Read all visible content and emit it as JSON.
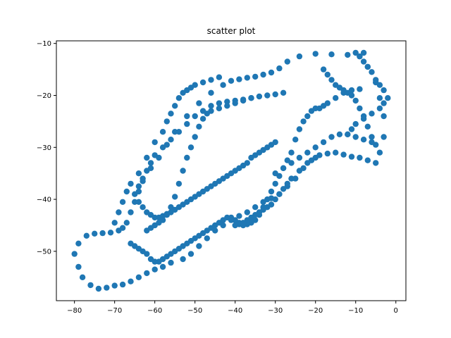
{
  "chart_data": {
    "type": "scatter",
    "title": "scatter plot",
    "xlabel": "",
    "ylabel": "",
    "xlim": [
      -84.5,
      2.5
    ],
    "ylim": [
      -59.5,
      -9.5
    ],
    "xticks": [
      -80,
      -70,
      -60,
      -50,
      -40,
      -30,
      -20,
      -10,
      0
    ],
    "yticks": [
      -10,
      -20,
      -30,
      -40,
      -50
    ],
    "xtick_labels": [
      "−80",
      "−70",
      "−60",
      "−50",
      "−40",
      "−30",
      "−20",
      "−10",
      "0"
    ],
    "ytick_labels": [
      "−10",
      "−20",
      "−30",
      "−40",
      "−50"
    ],
    "grid": false,
    "marker_color": "#1f77b4",
    "series": [
      {
        "x": [
          -8,
          -12,
          -16,
          -20,
          -24,
          -27,
          -29,
          -31,
          -33,
          -35,
          -37,
          -39,
          -41,
          -43,
          -46,
          -49,
          -52,
          -55,
          -57,
          -59,
          -61,
          -63,
          -64,
          -65,
          -66,
          -67,
          -68,
          -69,
          -71,
          -73,
          -75,
          -77,
          -79,
          -80,
          -79,
          -78,
          -76,
          -74,
          -72,
          -70,
          -68,
          -66,
          -64,
          -62,
          -60,
          -58,
          -56,
          -53,
          -51,
          -49,
          -47,
          -45,
          -43,
          -41,
          -39,
          -37,
          -35,
          -33,
          -31,
          -29,
          -27,
          -25,
          -23,
          -21,
          -19,
          -17,
          -15,
          -13,
          -11,
          -9,
          -7,
          -5,
          -4,
          -3,
          -3,
          -4,
          -5,
          -7,
          -9
        ],
        "y": [
          -11.8,
          -12.2,
          -12.1,
          -12.0,
          -12.5,
          -13.5,
          -14.8,
          -15.6,
          -16.0,
          -16.4,
          -16.6,
          -16.9,
          -17.2,
          -18.0,
          -19.5,
          -21.5,
          -24.0,
          -27.0,
          -29.5,
          -32.0,
          -34.0,
          -36.5,
          -38.5,
          -40.5,
          -42.5,
          -44.5,
          -45.5,
          -46.0,
          -46.4,
          -46.5,
          -46.6,
          -47.0,
          -48.5,
          -50.5,
          -53.0,
          -55.0,
          -56.5,
          -57.2,
          -57.0,
          -56.6,
          -56.4,
          -55.8,
          -55.0,
          -54.2,
          -53.5,
          -53.0,
          -52.2,
          -51.5,
          -50.5,
          -49.0,
          -47.5,
          -46.0,
          -45.0,
          -44.0,
          -43.2,
          -42.5,
          -41.5,
          -40.5,
          -39.8,
          -39.0,
          -37.5,
          -36.0,
          -34.0,
          -32.5,
          -31.5,
          -31.2,
          -31.0,
          -31.4,
          -31.8,
          -32.0,
          -32.5,
          -33.0,
          -31.0,
          -28.0,
          -24.0,
          -20.5,
          -17.5,
          -14.5,
          -12.5
        ]
      },
      {
        "x": [
          -9,
          -11,
          -13,
          -15,
          -17,
          -18,
          -19,
          -20,
          -21,
          -22,
          -23,
          -24,
          -25,
          -26,
          -27,
          -28,
          -29,
          -30,
          -31,
          -32,
          -33,
          -34,
          -35,
          -36,
          -37,
          -38,
          -39,
          -40,
          -41,
          -42,
          -43,
          -44,
          -45,
          -46,
          -47,
          -48,
          -49,
          -50,
          -51,
          -52,
          -53,
          -54,
          -55,
          -56,
          -57,
          -58,
          -59,
          -60,
          -61,
          -62,
          -63,
          -64,
          -65,
          -66
        ],
        "y": [
          -18.8,
          -19.0,
          -19.5,
          -20.5,
          -21.5,
          -22.0,
          -22.5,
          -22.5,
          -23.0,
          -24.0,
          -25.0,
          -26.5,
          -28.5,
          -31.0,
          -32.5,
          -34.0,
          -35.5,
          -37.0,
          -38.5,
          -40.0,
          -41.5,
          -43.0,
          -44.0,
          -44.5,
          -44.8,
          -45.0,
          -44.5,
          -44.0,
          -43.5,
          -43.5,
          -44.0,
          -44.5,
          -45.0,
          -45.5,
          -46.0,
          -46.5,
          -47.0,
          -47.5,
          -48.0,
          -48.5,
          -49.0,
          -49.5,
          -50.0,
          -50.5,
          -51.0,
          -51.5,
          -52.0,
          -52.0,
          -51.5,
          -50.5,
          -50.0,
          -49.5,
          -49.0,
          -48.5
        ]
      },
      {
        "x": [
          -28,
          -30,
          -32,
          -34,
          -36,
          -38,
          -40,
          -42,
          -44,
          -46,
          -48,
          -50,
          -52,
          -54,
          -56,
          -58,
          -60,
          -61,
          -62,
          -63,
          -64,
          -65,
          -64,
          -63,
          -62,
          -61,
          -60,
          -59,
          -58,
          -57,
          -56,
          -55,
          -54,
          -53,
          -52,
          -51,
          -50,
          -49,
          -48,
          -47,
          -46,
          -45,
          -44,
          -43,
          -42,
          -41,
          -40,
          -39,
          -38,
          -37,
          -36,
          -35,
          -34,
          -33,
          -32,
          -31,
          -30
        ],
        "y": [
          -19.5,
          -19.8,
          -20.0,
          -20.2,
          -20.5,
          -20.8,
          -21.0,
          -21.2,
          -21.5,
          -22.0,
          -23.0,
          -24.0,
          -25.5,
          -27.0,
          -28.5,
          -30.0,
          -31.5,
          -33.0,
          -34.5,
          -36.0,
          -37.5,
          -39.0,
          -40.5,
          -41.5,
          -42.5,
          -43.0,
          -43.5,
          -43.5,
          -43.2,
          -42.8,
          -42.5,
          -42.0,
          -41.5,
          -41.0,
          -40.5,
          -40.0,
          -39.5,
          -39.0,
          -38.5,
          -38.0,
          -37.5,
          -37.0,
          -36.5,
          -36.0,
          -35.5,
          -35.0,
          -34.5,
          -34.0,
          -33.5,
          -33.0,
          -32.0,
          -31.5,
          -31.0,
          -30.5,
          -30.0,
          -29.5,
          -29.0
        ]
      },
      {
        "x": [
          -44,
          -46,
          -48,
          -50,
          -51,
          -52,
          -53,
          -54,
          -55,
          -56,
          -57,
          -58,
          -60,
          -62,
          -64,
          -66,
          -67,
          -68,
          -69,
          -70
        ],
        "y": [
          -16.5,
          -17.0,
          -17.5,
          -18.0,
          -18.5,
          -19.0,
          -19.5,
          -20.5,
          -22.0,
          -23.5,
          -25.0,
          -27.0,
          -29.0,
          -32.0,
          -35.0,
          -37.0,
          -38.5,
          -40.5,
          -42.5,
          -44.5
        ]
      },
      {
        "x": [
          -36,
          -38,
          -40,
          -42,
          -44,
          -46,
          -47,
          -48,
          -49,
          -50,
          -51,
          -52,
          -53,
          -54,
          -55,
          -56,
          -57,
          -58,
          -59,
          -60,
          -61,
          -62
        ],
        "y": [
          -20.5,
          -21.0,
          -21.5,
          -22.0,
          -22.5,
          -23.0,
          -23.5,
          -24.5,
          -26.0,
          -28.0,
          -30.0,
          -32.0,
          -34.5,
          -37.0,
          -39.5,
          -41.5,
          -43.0,
          -44.0,
          -44.5,
          -45.0,
          -45.5,
          -46.0
        ]
      },
      {
        "x": [
          -18,
          -17,
          -16,
          -15,
          -14,
          -13,
          -12,
          -11,
          -10,
          -9,
          -8,
          -7,
          -6,
          -5,
          -6,
          -8,
          -10,
          -12,
          -14,
          -16,
          -18,
          -20,
          -22,
          -24,
          -26,
          -28,
          -30
        ],
        "y": [
          -15.0,
          -16.0,
          -17.0,
          -18.0,
          -18.5,
          -19.0,
          -19.5,
          -20.0,
          -21.0,
          -22.5,
          -24.0,
          -26.0,
          -28.0,
          -29.5,
          -29.0,
          -28.5,
          -28.0,
          -27.5,
          -27.5,
          -28.0,
          -29.0,
          -30.0,
          -31.0,
          -32.0,
          -33.0,
          -34.0,
          -35.0
        ]
      },
      {
        "x": [
          -20,
          -22,
          -24,
          -26,
          -27,
          -28,
          -29,
          -30,
          -31,
          -32,
          -33,
          -34,
          -35,
          -36,
          -37,
          -38,
          -39,
          -40
        ],
        "y": [
          -32.0,
          -33.0,
          -34.5,
          -36.0,
          -37.0,
          -38.0,
          -39.0,
          -40.0,
          -41.0,
          -41.5,
          -42.0,
          -42.5,
          -43.0,
          -43.5,
          -44.0,
          -44.5,
          -44.8,
          -45.0
        ]
      },
      {
        "x": [
          -10,
          -9,
          -8,
          -7,
          -6,
          -5,
          -4,
          -3,
          -2,
          -3,
          -4,
          -6,
          -8,
          -10,
          -11,
          -12
        ],
        "y": [
          -11.8,
          -12.5,
          -13.5,
          -14.5,
          -15.5,
          -17.0,
          -18.0,
          -19.0,
          -20.5,
          -21.5,
          -22.5,
          -23.5,
          -24.5,
          -25.5,
          -26.5,
          -27.5
        ]
      }
    ]
  }
}
